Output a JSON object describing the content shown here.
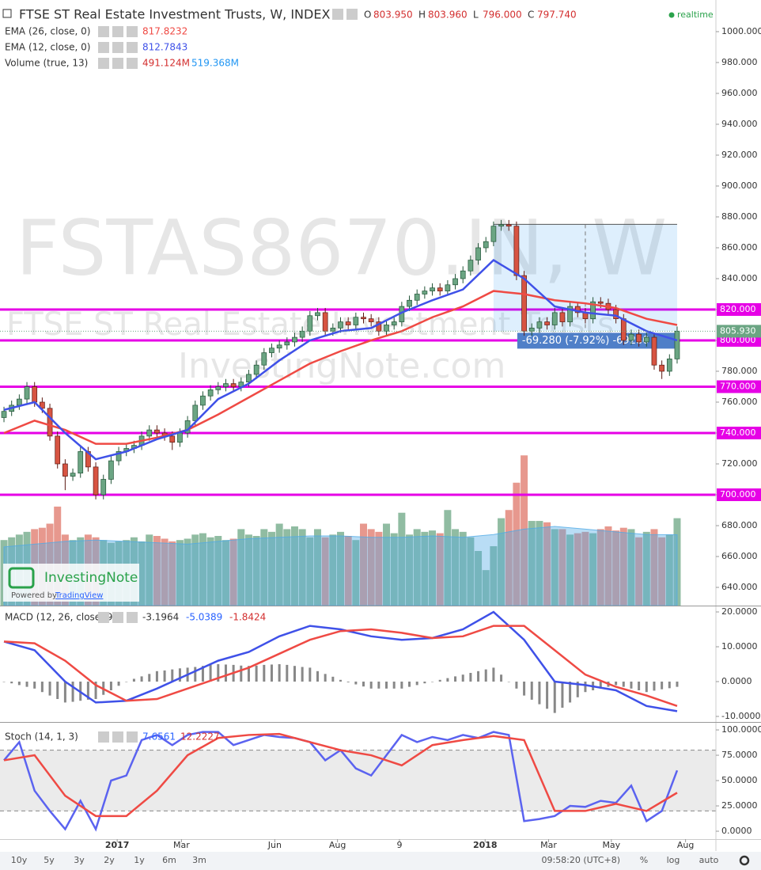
{
  "header": {
    "title": "FTSE ST Real Estate Investment Trusts, W, INDEX",
    "ohlc": [
      [
        "O",
        "803.950"
      ],
      [
        "H",
        "803.960"
      ],
      [
        "L",
        "796.000"
      ],
      [
        "C",
        "797.740"
      ]
    ],
    "status": "realtime"
  },
  "watermark": [
    "FSTAS8670.IN, W",
    "FTSE ST Real Estate Investment Trusts",
    "InvestingNote.com"
  ],
  "logo": {
    "name": "InvestingNote",
    "powered": "Powered by",
    "link": "TradingView"
  },
  "xlim": [
    -0.52,
    93.07
  ],
  "xticks": [
    {
      "value": 14.8,
      "label": "2017"
    },
    {
      "value": 23.2,
      "label": "Mar"
    },
    {
      "value": 35.4,
      "label": "Jun"
    },
    {
      "value": 43.6,
      "label": "Aug"
    },
    {
      "value": 51.7,
      "label": "9"
    },
    {
      "value": 62.9,
      "label": "2018"
    },
    {
      "value": 71.2,
      "label": "Mar"
    },
    {
      "value": 79.4,
      "label": "May"
    },
    {
      "value": 89.1,
      "label": "Aug"
    }
  ],
  "toolbar": {
    "ranges": [
      "10y",
      "5y",
      "3y",
      "2y",
      "1y",
      "6m",
      "3m"
    ],
    "clock": "09:58:20 (UTC+8)",
    "options": [
      "%",
      "log",
      "auto"
    ]
  },
  "chart_data": [
    {
      "type": "candlestick",
      "up_color": "#6ba583",
      "down_color": "#d75442",
      "open": [
        750,
        754,
        758,
        762,
        770,
        760,
        756,
        738,
        720,
        712,
        714,
        728,
        718,
        700,
        710,
        722,
        728,
        730,
        732,
        738,
        742,
        740,
        738,
        734,
        740,
        748,
        758,
        764,
        768,
        770,
        772,
        770,
        773,
        778,
        784,
        792,
        795,
        797,
        799,
        802,
        806,
        816,
        818,
        806,
        808,
        812,
        810,
        815,
        814,
        812,
        806,
        810,
        812,
        822,
        826,
        830,
        832,
        834,
        832,
        836,
        840,
        845,
        852,
        860,
        864,
        874,
        875,
        874,
        842,
        806,
        808,
        812,
        810,
        818,
        812,
        822,
        818,
        814,
        825,
        824,
        820,
        814,
        800,
        804,
        799,
        802,
        784,
        780,
        788
      ],
      "high": [
        757,
        761,
        765,
        773,
        773,
        763,
        759,
        741,
        723,
        717,
        731,
        731,
        721,
        713,
        725,
        731,
        733,
        735,
        741,
        745,
        745,
        743,
        741,
        743,
        751,
        761,
        767,
        771,
        773,
        775,
        775,
        776,
        781,
        787,
        795,
        798,
        800,
        802,
        805,
        809,
        819,
        821,
        821,
        811,
        815,
        815,
        818,
        818,
        817,
        815,
        813,
        815,
        825,
        829,
        833,
        835,
        837,
        837,
        839,
        843,
        848,
        855,
        863,
        867,
        877,
        878,
        878,
        877,
        845,
        811,
        815,
        815,
        821,
        821,
        825,
        825,
        821,
        828,
        828,
        827,
        823,
        817,
        807,
        807,
        805,
        805,
        787,
        791,
        809
      ],
      "low": [
        747,
        751,
        755,
        759,
        757,
        753,
        735,
        717,
        703,
        709,
        711,
        715,
        697,
        697,
        707,
        719,
        725,
        727,
        729,
        735,
        737,
        735,
        729,
        731,
        737,
        745,
        755,
        761,
        765,
        767,
        767,
        767,
        770,
        775,
        781,
        789,
        792,
        794,
        796,
        799,
        803,
        813,
        803,
        803,
        805,
        807,
        807,
        811,
        809,
        803,
        803,
        807,
        809,
        819,
        823,
        827,
        829,
        829,
        829,
        833,
        837,
        842,
        849,
        857,
        861,
        871,
        871,
        839,
        803,
        803,
        805,
        807,
        807,
        809,
        809,
        815,
        811,
        811,
        821,
        817,
        811,
        797,
        797,
        796,
        796,
        781,
        775,
        777,
        785
      ],
      "close": [
        754,
        758,
        762,
        770,
        760,
        756,
        738,
        720,
        712,
        714,
        728,
        718,
        700,
        710,
        722,
        728,
        730,
        732,
        738,
        742,
        740,
        738,
        734,
        740,
        748,
        758,
        764,
        768,
        770,
        772,
        770,
        773,
        778,
        784,
        792,
        795,
        797,
        799,
        802,
        806,
        816,
        818,
        806,
        808,
        812,
        810,
        815,
        814,
        812,
        806,
        810,
        812,
        822,
        826,
        830,
        832,
        834,
        832,
        836,
        840,
        845,
        852,
        860,
        864,
        874,
        875,
        874,
        842,
        806,
        808,
        812,
        810,
        818,
        812,
        822,
        818,
        814,
        825,
        824,
        820,
        814,
        800,
        804,
        799,
        802,
        784,
        780,
        788,
        806
      ],
      "ylim": [
        628.2,
        1020.5
      ],
      "yticks": [
        {
          "value": 640,
          "label": "640.000"
        },
        {
          "value": 660,
          "label": "660.000"
        },
        {
          "value": 680,
          "label": "680.000"
        },
        {
          "value": 700,
          "label": "700.000"
        },
        {
          "value": 720,
          "label": "720.000"
        },
        {
          "value": 740,
          "label": "740.000"
        },
        {
          "value": 760,
          "label": "760.000"
        },
        {
          "value": 780,
          "label": "780.000"
        },
        {
          "value": 800,
          "label": "800.000"
        },
        {
          "value": 820,
          "label": "820.000"
        },
        {
          "value": 840,
          "label": "840.000"
        },
        {
          "value": 860,
          "label": "860.000"
        },
        {
          "value": 880,
          "label": "880.000"
        },
        {
          "value": 900,
          "label": "900.000"
        },
        {
          "value": 920,
          "label": "920.000"
        },
        {
          "value": 940,
          "label": "940.000"
        },
        {
          "value": 960,
          "label": "960.000"
        },
        {
          "value": 980,
          "label": "980.000"
        },
        {
          "value": 1000,
          "label": "1000.000"
        }
      ],
      "lines": [
        {
          "name": "EMA (26, close, 0)",
          "legend_value": "817.8232",
          "color": "#ef4a44",
          "x": [
            0,
            4,
            8,
            12,
            16,
            20,
            24,
            28,
            32,
            36,
            40,
            44,
            48,
            52,
            56,
            60,
            64,
            68,
            72,
            76,
            80,
            84,
            88
          ],
          "values": [
            740,
            748,
            742,
            733,
            733,
            737,
            742,
            752,
            763,
            774,
            785,
            793,
            800,
            806,
            815,
            822,
            832,
            830,
            826,
            824,
            821,
            814,
            810
          ]
        },
        {
          "name": "EMA (12, close, 0)",
          "legend_value": "812.7843",
          "color": "#3f51e8",
          "x": [
            0,
            4,
            8,
            12,
            16,
            20,
            24,
            28,
            32,
            36,
            40,
            44,
            48,
            52,
            56,
            60,
            64,
            68,
            72,
            76,
            80,
            84,
            88
          ],
          "values": [
            755,
            760,
            740,
            723,
            728,
            736,
            742,
            762,
            772,
            787,
            800,
            806,
            808,
            818,
            826,
            833,
            852,
            840,
            822,
            818,
            816,
            806,
            800
          ]
        }
      ],
      "level_color": "#e600e6",
      "levels": [
        {
          "value": 700,
          "label": "700.000"
        },
        {
          "value": 740,
          "label": "740.000"
        },
        {
          "value": 770,
          "label": "770.000"
        },
        {
          "value": 800,
          "label": "800.000"
        },
        {
          "value": 820,
          "label": "820.000"
        }
      ],
      "last_price": {
        "value": 805.93,
        "label": "805.930"
      },
      "measure": {
        "x": [
          64,
          88
        ],
        "y": [
          875.21,
          805.93
        ],
        "label": "-69.280 (-7.92%) -69280"
      }
    },
    {
      "type": "volume",
      "name": "Volume (true, 13)",
      "legend_values": [
        "491.124M",
        "519.368M"
      ],
      "ylim": [
        0,
        1200
      ],
      "values": [
        480,
        500,
        520,
        540,
        560,
        570,
        600,
        725,
        520,
        480,
        500,
        520,
        500,
        480,
        460,
        470,
        480,
        500,
        470,
        520,
        510,
        490,
        470,
        480,
        490,
        520,
        530,
        500,
        510,
        480,
        490,
        560,
        520,
        510,
        560,
        540,
        600,
        560,
        580,
        560,
        500,
        560,
        500,
        520,
        540,
        510,
        480,
        600,
        560,
        540,
        600,
        530,
        680,
        520,
        560,
        540,
        550,
        530,
        700,
        560,
        540,
        500,
        400,
        260,
        435,
        640,
        700,
        900,
        1100,
        620,
        620,
        610,
        560,
        560,
        520,
        530,
        540,
        530,
        560,
        580,
        550,
        570,
        560,
        500,
        540,
        560,
        500,
        520,
        640
      ],
      "ma": {
        "x": [
          0,
          4,
          8,
          12,
          16,
          20,
          24,
          28,
          32,
          36,
          40,
          44,
          48,
          52,
          56,
          60,
          64,
          68,
          72,
          76,
          80,
          84,
          88
        ],
        "values": [
          430,
          450,
          470,
          480,
          470,
          460,
          450,
          470,
          490,
          500,
          510,
          510,
          500,
          500,
          510,
          500,
          520,
          560,
          580,
          560,
          540,
          520,
          519
        ]
      }
    },
    {
      "type": "macd",
      "name": "MACD (12, 26, close, 9)",
      "legend_values": [
        "-3.1964",
        "-5.0389",
        "-1.8424"
      ],
      "ylim": [
        -11.59,
        21.14
      ],
      "yticks": [
        {
          "value": 20,
          "label": "20.0000"
        },
        {
          "value": 10,
          "label": "10.0000"
        },
        {
          "value": 0,
          "label": "0.0000"
        },
        {
          "value": -10,
          "label": "-10.0000"
        }
      ],
      "histogram": [
        0,
        -0.5,
        -1,
        -1.5,
        -2,
        -3,
        -4,
        -5,
        -6,
        -5.8,
        -5.5,
        -5.2,
        -5,
        -3.8,
        -2.5,
        -1.2,
        0,
        0.8,
        1.5,
        2.2,
        3,
        3.2,
        3.5,
        3.8,
        4,
        4.2,
        4.5,
        4.8,
        5,
        4.9,
        4.8,
        4.6,
        4.5,
        4.6,
        4.8,
        4.9,
        5,
        4.8,
        4.5,
        4.2,
        4,
        3,
        2.2,
        1.4,
        0.5,
        -0.2,
        -0.8,
        -1.4,
        -2,
        -2,
        -2,
        -2,
        -2,
        -1.5,
        -1,
        -0.5,
        0,
        0.5,
        1,
        1.5,
        2,
        2.5,
        3,
        3.5,
        4,
        2,
        0,
        -2,
        -4,
        -5.2,
        -6.5,
        -7.8,
        -9,
        -7.5,
        -6,
        -4.5,
        -3,
        -2.5,
        -2,
        -1.5,
        -1,
        -1.5,
        -2,
        -2.5,
        -3,
        -2.6,
        -2.2,
        -1.9,
        -1.5
      ],
      "series": [
        {
          "color": "#3f51e8",
          "x": [
            0,
            4,
            8,
            12,
            16,
            20,
            24,
            28,
            32,
            36,
            40,
            44,
            48,
            52,
            56,
            60,
            64,
            68,
            72,
            76,
            80,
            84,
            88
          ],
          "values": [
            11.5,
            9,
            0,
            -6,
            -5.5,
            -2,
            2,
            6,
            8.5,
            13,
            16,
            15,
            13,
            12,
            12.5,
            15,
            20,
            12,
            0,
            -1,
            -2.5,
            -7,
            -8.5
          ]
        },
        {
          "color": "#ef4a44",
          "x": [
            0,
            4,
            8,
            12,
            16,
            20,
            24,
            28,
            32,
            36,
            40,
            44,
            48,
            52,
            56,
            60,
            64,
            68,
            72,
            76,
            80,
            84,
            88
          ],
          "values": [
            11.5,
            11,
            6,
            -1,
            -5.5,
            -5,
            -2,
            1,
            4,
            8,
            12,
            14.5,
            15,
            14,
            12.5,
            13,
            16,
            16,
            9,
            2,
            -1.5,
            -4,
            -7
          ]
        }
      ]
    },
    {
      "type": "stoch",
      "name": "Stoch (14, 1, 3)",
      "legend_values": [
        "7.6561",
        "12.2227"
      ],
      "ylim": [
        -7.8,
        105.5
      ],
      "band": [
        20,
        80
      ],
      "yticks": [
        {
          "value": 100,
          "label": "100.0000"
        },
        {
          "value": 75,
          "label": "75.0000"
        },
        {
          "value": 50,
          "label": "50.0000"
        },
        {
          "value": 25,
          "label": "25.0000"
        },
        {
          "value": 0,
          "label": "0.0000"
        }
      ],
      "series": [
        {
          "color": "#5b63f0",
          "x": [
            0,
            2,
            4,
            6,
            8,
            10,
            12,
            14,
            16,
            18,
            20,
            22,
            24,
            26,
            28,
            30,
            32,
            34,
            36,
            38,
            40,
            42,
            44,
            46,
            48,
            50,
            52,
            54,
            56,
            58,
            60,
            62,
            64,
            66,
            68,
            70,
            72,
            74,
            76,
            78,
            80,
            82,
            84,
            86,
            88
          ],
          "values": [
            70,
            88,
            40,
            20,
            2,
            30,
            2,
            50,
            55,
            90,
            95,
            85,
            95,
            98,
            98,
            85,
            90,
            95,
            93,
            92,
            88,
            70,
            80,
            62,
            55,
            75,
            95,
            88,
            93,
            90,
            95,
            92,
            98,
            95,
            10,
            12,
            15,
            25,
            24,
            30,
            28,
            45,
            10,
            20,
            60
          ]
        },
        {
          "color": "#ef4a44",
          "x": [
            0,
            4,
            8,
            12,
            16,
            20,
            24,
            28,
            32,
            36,
            40,
            44,
            48,
            52,
            56,
            60,
            64,
            68,
            72,
            76,
            80,
            84,
            88
          ],
          "values": [
            70,
            75,
            35,
            15,
            15,
            40,
            75,
            92,
            95,
            96,
            88,
            80,
            75,
            65,
            85,
            90,
            94,
            90,
            20,
            20,
            27,
            20,
            38
          ]
        }
      ]
    }
  ]
}
